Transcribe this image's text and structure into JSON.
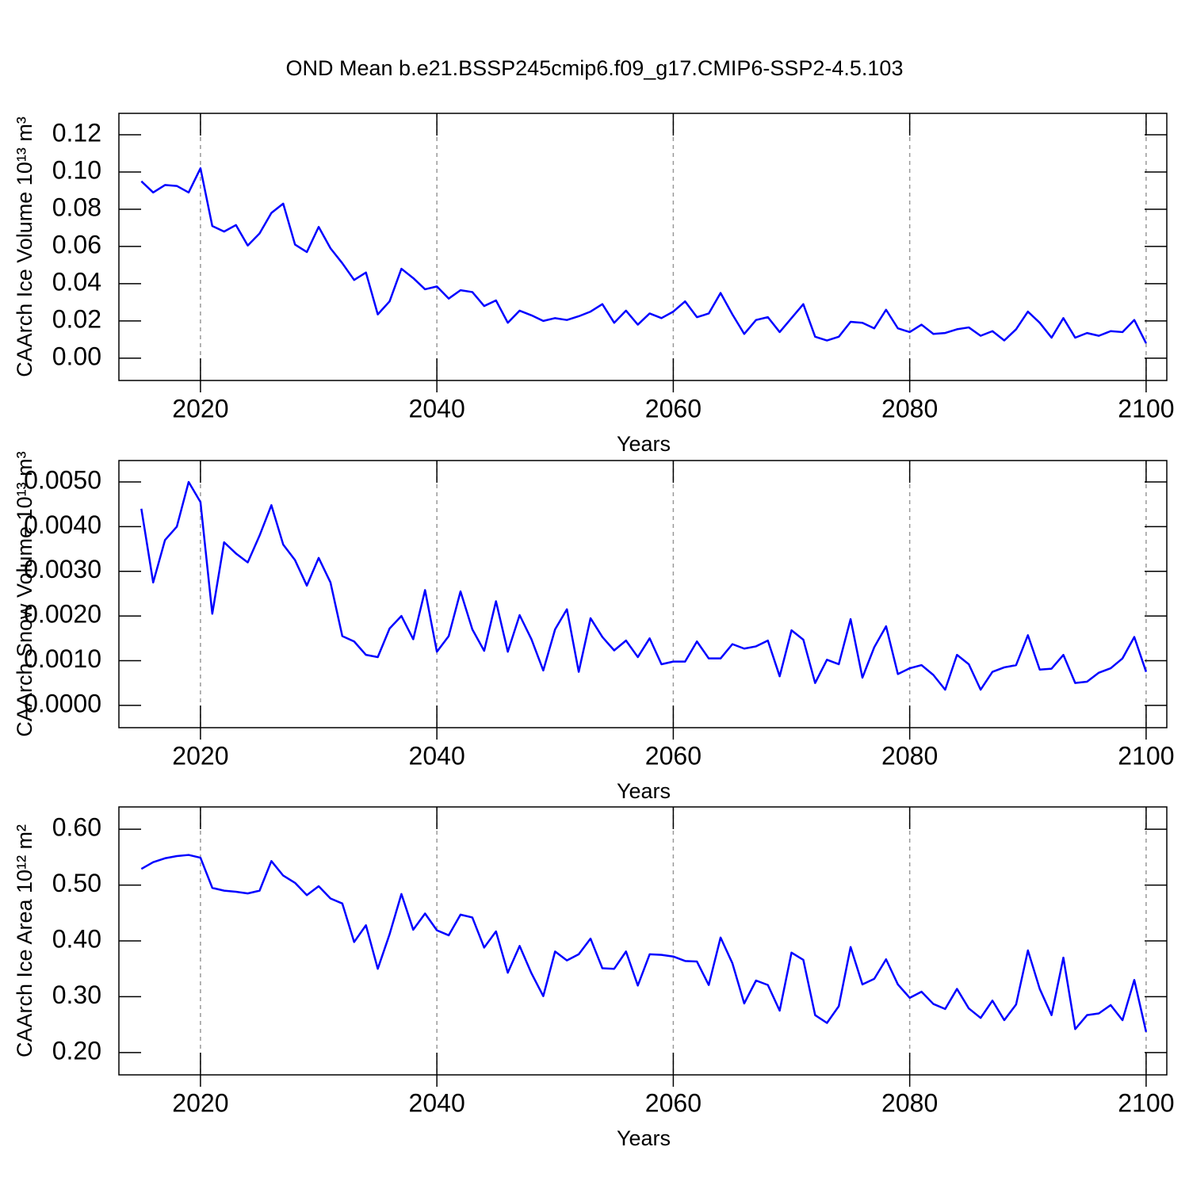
{
  "chart_data": [
    {
      "type": "line",
      "title": "OND Mean b.e21.BSSP245cmip6.f09_g17.CMIP6-SSP2-4.5.103",
      "ylabel": "CAArch Ice Volume 10¹³ m³",
      "xlabel": "Years",
      "x": [
        2015,
        2016,
        2017,
        2018,
        2019,
        2020,
        2021,
        2022,
        2023,
        2024,
        2025,
        2026,
        2027,
        2028,
        2029,
        2030,
        2031,
        2032,
        2033,
        2034,
        2035,
        2036,
        2037,
        2038,
        2039,
        2040,
        2041,
        2042,
        2043,
        2044,
        2045,
        2046,
        2047,
        2048,
        2049,
        2050,
        2051,
        2052,
        2053,
        2054,
        2055,
        2056,
        2057,
        2058,
        2059,
        2060,
        2061,
        2062,
        2063,
        2064,
        2065,
        2066,
        2067,
        2068,
        2069,
        2070,
        2071,
        2072,
        2073,
        2074,
        2075,
        2076,
        2077,
        2078,
        2079,
        2080,
        2081,
        2082,
        2083,
        2084,
        2085,
        2086,
        2087,
        2088,
        2089,
        2090,
        2091,
        2092,
        2093,
        2094,
        2095,
        2096,
        2097,
        2098,
        2099,
        2100
      ],
      "values": [
        0.095,
        0.089,
        0.093,
        0.0925,
        0.089,
        0.102,
        0.071,
        0.068,
        0.0715,
        0.0605,
        0.067,
        0.078,
        0.083,
        0.061,
        0.057,
        0.0705,
        0.059,
        0.051,
        0.042,
        0.046,
        0.0235,
        0.0305,
        0.048,
        0.043,
        0.037,
        0.0385,
        0.032,
        0.0365,
        0.0355,
        0.028,
        0.031,
        0.019,
        0.0255,
        0.023,
        0.02,
        0.0215,
        0.0205,
        0.0225,
        0.025,
        0.029,
        0.019,
        0.0255,
        0.018,
        0.024,
        0.0215,
        0.025,
        0.0305,
        0.022,
        0.024,
        0.035,
        0.0235,
        0.013,
        0.0205,
        0.022,
        0.014,
        0.0215,
        0.029,
        0.0115,
        0.0095,
        0.0115,
        0.0195,
        0.019,
        0.016,
        0.026,
        0.016,
        0.014,
        0.018,
        0.013,
        0.0135,
        0.0155,
        0.0165,
        0.012,
        0.0145,
        0.0095,
        0.0155,
        0.025,
        0.019,
        0.011,
        0.0215,
        0.011,
        0.0135,
        0.012,
        0.0145,
        0.014,
        0.0205,
        0.008
      ],
      "color": "#0000ff",
      "xlim": [
        2013.1,
        2101.75
      ],
      "ylim": [
        -0.012,
        0.1315
      ],
      "xticks": [
        2020,
        2040,
        2060,
        2080,
        2100
      ],
      "yticks": [
        {
          "value": 0,
          "label": "0.00"
        },
        0.02,
        0.04,
        0.06,
        0.08,
        {
          "value": 0.1,
          "label": "0.10"
        },
        0.12
      ],
      "grid": true
    },
    {
      "type": "line",
      "ylabel": "CAArch Snow Volume 10¹³ m³",
      "xlabel": "Years",
      "x": [
        2015,
        2016,
        2017,
        2018,
        2019,
        2020,
        2021,
        2022,
        2023,
        2024,
        2025,
        2026,
        2027,
        2028,
        2029,
        2030,
        2031,
        2032,
        2033,
        2034,
        2035,
        2036,
        2037,
        2038,
        2039,
        2040,
        2041,
        2042,
        2043,
        2044,
        2045,
        2046,
        2047,
        2048,
        2049,
        2050,
        2051,
        2052,
        2053,
        2054,
        2055,
        2056,
        2057,
        2058,
        2059,
        2060,
        2061,
        2062,
        2063,
        2064,
        2065,
        2066,
        2067,
        2068,
        2069,
        2070,
        2071,
        2072,
        2073,
        2074,
        2075,
        2076,
        2077,
        2078,
        2079,
        2080,
        2081,
        2082,
        2083,
        2084,
        2085,
        2086,
        2087,
        2088,
        2089,
        2090,
        2091,
        2092,
        2093,
        2094,
        2095,
        2096,
        2097,
        2098,
        2099,
        2100
      ],
      "values": [
        0.0044,
        0.00275,
        0.0037,
        0.004,
        0.005,
        0.00455,
        0.00205,
        0.00365,
        0.0034,
        0.0032,
        0.0038,
        0.00448,
        0.0036,
        0.00325,
        0.00268,
        0.0033,
        0.00275,
        0.00155,
        0.00143,
        0.00113,
        0.00108,
        0.00172,
        0.002,
        0.00148,
        0.00258,
        0.0012,
        0.00155,
        0.00255,
        0.0017,
        0.00122,
        0.00233,
        0.0012,
        0.00202,
        0.00148,
        0.00078,
        0.0017,
        0.00215,
        0.00075,
        0.00195,
        0.00153,
        0.00123,
        0.00145,
        0.00108,
        0.0015,
        0.00092,
        0.00098,
        0.00098,
        0.00143,
        0.00105,
        0.00105,
        0.00137,
        0.00127,
        0.00132,
        0.00145,
        0.00065,
        0.00168,
        0.00147,
        0.0005,
        0.00102,
        0.00092,
        0.00193,
        0.00062,
        0.0013,
        0.00177,
        0.0007,
        0.00083,
        0.0009,
        0.00068,
        0.00035,
        0.00113,
        0.00092,
        0.00035,
        0.00075,
        0.00085,
        0.0009,
        0.00157,
        0.0008,
        0.00082,
        0.00113,
        0.0005,
        0.00053,
        0.00073,
        0.00083,
        0.00105,
        0.00153,
        0.00075
      ],
      "color": "#0000ff",
      "xlim": [
        2013.1,
        2101.75
      ],
      "ylim": [
        -0.0005,
        0.00548
      ],
      "xticks": [
        2020,
        2040,
        2060,
        2080,
        2100
      ],
      "yticks": [
        {
          "value": 0,
          "label": "0.0000"
        },
        {
          "value": 0.001,
          "label": "0.0010"
        },
        {
          "value": 0.002,
          "label": "0.0020"
        },
        {
          "value": 0.003,
          "label": "0.0030"
        },
        {
          "value": 0.004,
          "label": "0.0040"
        },
        {
          "value": 0.005,
          "label": "0.0050"
        }
      ],
      "grid": true
    },
    {
      "type": "line",
      "ylabel": "CAArch Ice Area 10¹² m²",
      "xlabel": "Years",
      "x": [
        2015,
        2016,
        2017,
        2018,
        2019,
        2020,
        2021,
        2022,
        2023,
        2024,
        2025,
        2026,
        2027,
        2028,
        2029,
        2030,
        2031,
        2032,
        2033,
        2034,
        2035,
        2036,
        2037,
        2038,
        2039,
        2040,
        2041,
        2042,
        2043,
        2044,
        2045,
        2046,
        2047,
        2048,
        2049,
        2050,
        2051,
        2052,
        2053,
        2054,
        2055,
        2056,
        2057,
        2058,
        2059,
        2060,
        2061,
        2062,
        2063,
        2064,
        2065,
        2066,
        2067,
        2068,
        2069,
        2070,
        2071,
        2072,
        2073,
        2074,
        2075,
        2076,
        2077,
        2078,
        2079,
        2080,
        2081,
        2082,
        2083,
        2084,
        2085,
        2086,
        2087,
        2088,
        2089,
        2090,
        2091,
        2092,
        2093,
        2094,
        2095,
        2096,
        2097,
        2098,
        2099,
        2100
      ],
      "values": [
        0.529,
        0.541,
        0.548,
        0.552,
        0.554,
        0.549,
        0.495,
        0.49,
        0.488,
        0.485,
        0.49,
        0.543,
        0.517,
        0.504,
        0.482,
        0.498,
        0.476,
        0.467,
        0.398,
        0.428,
        0.35,
        0.412,
        0.484,
        0.42,
        0.449,
        0.419,
        0.41,
        0.447,
        0.442,
        0.388,
        0.417,
        0.343,
        0.391,
        0.342,
        0.301,
        0.381,
        0.365,
        0.376,
        0.404,
        0.351,
        0.35,
        0.381,
        0.32,
        0.376,
        0.375,
        0.372,
        0.364,
        0.363,
        0.321,
        0.406,
        0.36,
        0.288,
        0.329,
        0.321,
        0.275,
        0.379,
        0.366,
        0.267,
        0.253,
        0.283,
        0.389,
        0.322,
        0.332,
        0.367,
        0.322,
        0.298,
        0.309,
        0.287,
        0.278,
        0.314,
        0.279,
        0.262,
        0.293,
        0.258,
        0.286,
        0.383,
        0.314,
        0.267,
        0.37,
        0.242,
        0.267,
        0.27,
        0.285,
        0.258,
        0.33,
        0.237
      ],
      "color": "#0000ff",
      "xlim": [
        2013.1,
        2101.75
      ],
      "ylim": [
        0.16,
        0.64
      ],
      "xticks": [
        2020,
        2040,
        2060,
        2080,
        2100
      ],
      "yticks": [
        {
          "value": 0.2,
          "label": "0.20"
        },
        {
          "value": 0.3,
          "label": "0.30"
        },
        {
          "value": 0.4,
          "label": "0.40"
        },
        {
          "value": 0.5,
          "label": "0.50"
        },
        {
          "value": 0.6,
          "label": "0.60"
        }
      ],
      "grid": true
    }
  ]
}
